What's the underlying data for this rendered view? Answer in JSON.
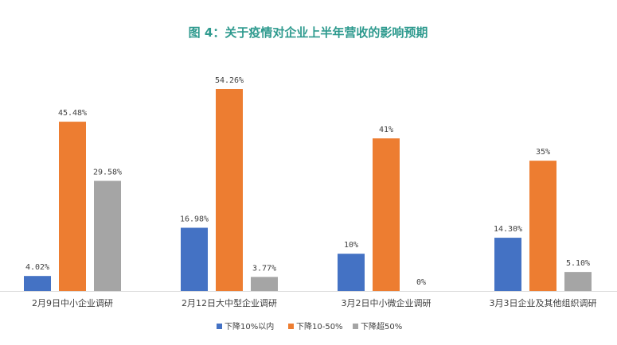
{
  "chart_data": {
    "type": "bar",
    "title": "图 4：关于疫情对企业上半年营收的影响预期",
    "categories": [
      "2月9日中小企业调研",
      "2月12日大中型企业调研",
      "3月2日中小微企业调研",
      "3月3日企业及其他组织调研"
    ],
    "series": [
      {
        "name": "下降10%以内",
        "color": "#4472c4",
        "values": [
          4.02,
          16.98,
          10,
          14.3
        ],
        "labels": [
          "4.02%",
          "16.98%",
          "10%",
          "14.30%"
        ]
      },
      {
        "name": "下降10-50%",
        "color": "#ed7d31",
        "values": [
          45.48,
          54.26,
          41,
          35
        ],
        "labels": [
          "45.48%",
          "54.26%",
          "41%",
          "35%"
        ]
      },
      {
        "name": "下降超50%",
        "color": "#a5a5a5",
        "values": [
          29.58,
          3.77,
          0,
          5.1
        ],
        "labels": [
          "29.58%",
          "3.77%",
          "0%",
          "5.10%"
        ]
      }
    ],
    "ylim": [
      0,
      60
    ],
    "grid": false,
    "legend_position": "bottom"
  }
}
